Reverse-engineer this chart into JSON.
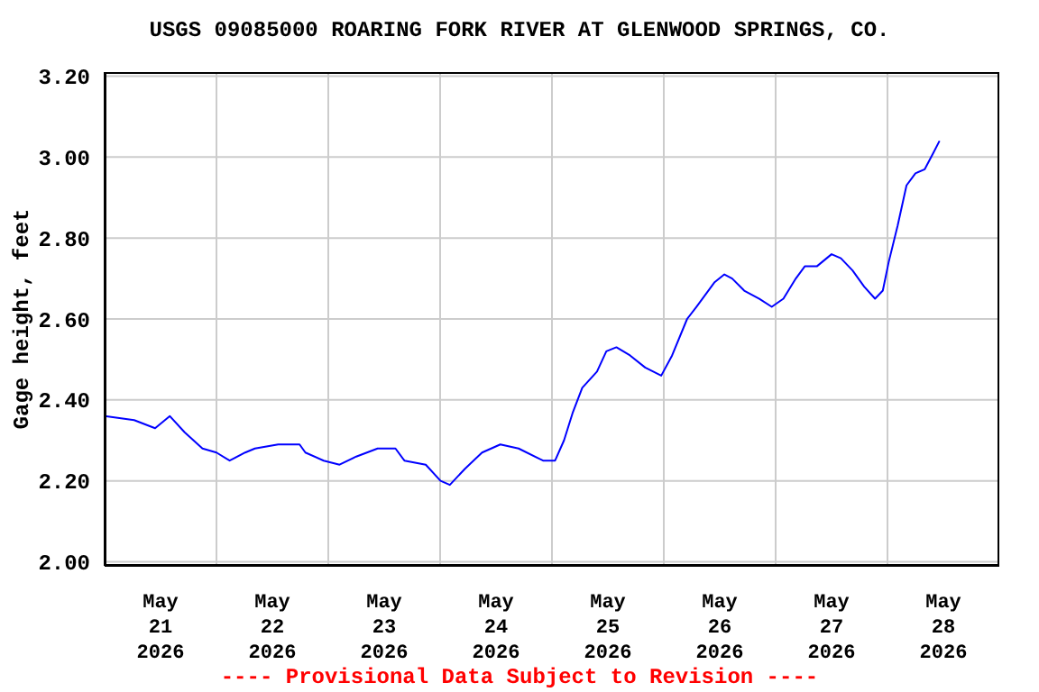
{
  "chart_data": {
    "type": "line",
    "title": "USGS 09085000 ROARING FORK RIVER AT GLENWOOD SPRINGS, CO.",
    "ylabel": "Gage height, feet",
    "annotations": [
      "---- Provisional Data Subject to Revision ----"
    ],
    "x": [
      "2026-05-21T00:00",
      "2026-05-21T06:20",
      "2026-05-21T10:50",
      "2026-05-21T14:00",
      "2026-05-21T17:10",
      "2026-05-21T21:00",
      "2026-05-22T00:00",
      "2026-05-22T02:50",
      "2026-05-22T06:10",
      "2026-05-22T08:15",
      "2026-05-22T13:15",
      "2026-05-22T17:50",
      "2026-05-22T19:05",
      "2026-05-22T23:00",
      "2026-05-23T02:25",
      "2026-05-23T06:00",
      "2026-05-23T10:35",
      "2026-05-23T14:25",
      "2026-05-23T16:20",
      "2026-05-23T20:55",
      "2026-05-24T00:05",
      "2026-05-24T02:05",
      "2026-05-24T05:20",
      "2026-05-24T09:00",
      "2026-05-24T12:55",
      "2026-05-24T16:50",
      "2026-05-24T22:05",
      "2026-05-25T00:40",
      "2026-05-25T02:35",
      "2026-05-25T04:30",
      "2026-05-25T06:30",
      "2026-05-25T09:40",
      "2026-05-25T11:40",
      "2026-05-25T13:50",
      "2026-05-25T16:45",
      "2026-05-25T20:00",
      "2026-05-25T23:27",
      "2026-05-26T01:47",
      "2026-05-26T05:00",
      "2026-05-26T07:00",
      "2026-05-26T10:50",
      "2026-05-26T13:00",
      "2026-05-26T14:40",
      "2026-05-26T17:15",
      "2026-05-26T20:30",
      "2026-05-26T23:10",
      "2026-05-27T01:40",
      "2026-05-27T04:20",
      "2026-05-27T06:15",
      "2026-05-27T08:50",
      "2026-05-27T12:00",
      "2026-05-27T14:00",
      "2026-05-27T16:30",
      "2026-05-27T19:00",
      "2026-05-27T21:20",
      "2026-05-27T23:00",
      "2026-05-28T00:15",
      "2026-05-28T02:10",
      "2026-05-28T04:05",
      "2026-05-28T06:00",
      "2026-05-28T08:00",
      "2026-05-28T09:50",
      "2026-05-28T11:10"
    ],
    "series": [
      {
        "color": "#0000ff",
        "values": [
          2.36,
          2.35,
          2.33,
          2.36,
          2.32,
          2.28,
          2.27,
          2.25,
          2.27,
          2.28,
          2.29,
          2.29,
          2.27,
          2.25,
          2.24,
          2.26,
          2.28,
          2.28,
          2.25,
          2.24,
          2.2,
          2.19,
          2.23,
          2.27,
          2.29,
          2.28,
          2.25,
          2.25,
          2.3,
          2.37,
          2.43,
          2.47,
          2.52,
          2.53,
          2.51,
          2.48,
          2.46,
          2.51,
          2.6,
          2.63,
          2.69,
          2.71,
          2.7,
          2.67,
          2.65,
          2.63,
          2.65,
          2.7,
          2.73,
          2.73,
          2.76,
          2.75,
          2.72,
          2.68,
          2.65,
          2.67,
          2.74,
          2.83,
          2.93,
          2.96,
          2.97,
          3.01,
          3.04
        ]
      }
    ],
    "xlim": [
      "2026-05-21T00:00",
      "2026-05-29T00:00"
    ],
    "xticks": [
      {
        "value": "2026-05-21T12:00",
        "label": "May\n21\n2026"
      },
      {
        "value": "2026-05-22T00:00",
        "label": null
      },
      {
        "value": "2026-05-22T12:00",
        "label": "May\n22\n2026"
      },
      {
        "value": "2026-05-23T00:00",
        "label": null
      },
      {
        "value": "2026-05-23T12:00",
        "label": "May\n23\n2026"
      },
      {
        "value": "2026-05-24T00:00",
        "label": null
      },
      {
        "value": "2026-05-24T12:00",
        "label": "May\n24\n2026"
      },
      {
        "value": "2026-05-25T00:00",
        "label": null
      },
      {
        "value": "2026-05-25T12:00",
        "label": "May\n25\n2026"
      },
      {
        "value": "2026-05-26T00:00",
        "label": null
      },
      {
        "value": "2026-05-26T12:00",
        "label": "May\n26\n2026"
      },
      {
        "value": "2026-05-27T00:00",
        "label": null
      },
      {
        "value": "2026-05-27T12:00",
        "label": "May\n27\n2026"
      },
      {
        "value": "2026-05-28T00:00",
        "label": null
      },
      {
        "value": "2026-05-28T12:00",
        "label": "May\n28\n2026"
      }
    ],
    "ylim": [
      1.99,
      3.21
    ],
    "yticks": [
      {
        "value": 2.0,
        "label": "2.00"
      },
      {
        "value": 2.2,
        "label": "2.20"
      },
      {
        "value": 2.4,
        "label": "2.40"
      },
      {
        "value": 2.6,
        "label": "2.60"
      },
      {
        "value": 2.8,
        "label": "2.80"
      },
      {
        "value": 3.0,
        "label": "3.00"
      },
      {
        "value": 3.2,
        "label": "3.20"
      }
    ],
    "grid": true,
    "legend": false,
    "marker": "none",
    "line_style": "solid"
  }
}
